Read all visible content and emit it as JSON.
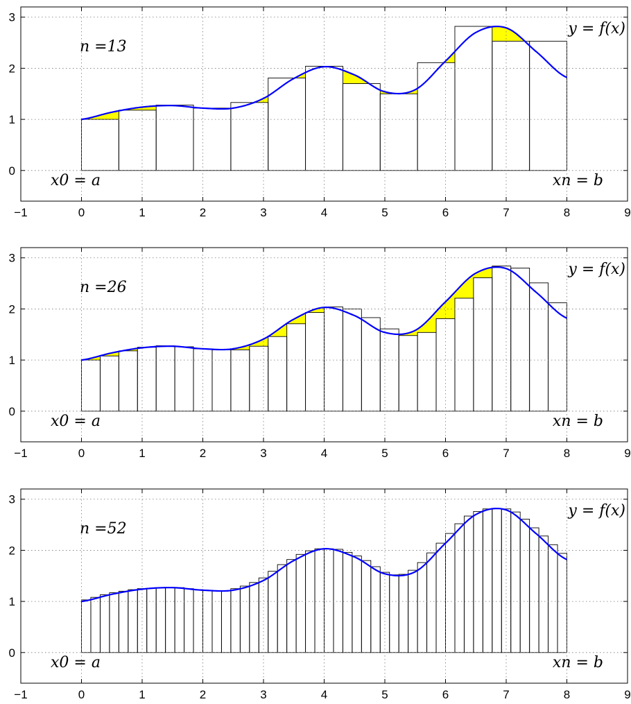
{
  "colors": {
    "curve": "#0000ff",
    "fill": "#ffff00",
    "bar_edge": "#000000"
  },
  "chart_data": [
    {
      "type": "bar",
      "n_label": "n =13",
      "n": 13,
      "curve_label": "y = f(x)",
      "left_label": "x0 = a",
      "right_label": "xn = b",
      "xlim": [
        -1,
        9
      ],
      "ylim": [
        -0.6,
        3.2
      ],
      "xticks": [
        "−1",
        "0",
        "1",
        "2",
        "3",
        "4",
        "5",
        "6",
        "7",
        "8",
        "9"
      ],
      "yticks": [
        "0",
        "1",
        "2",
        "3"
      ],
      "grid": true,
      "bar_heights": [
        1.0,
        1.18,
        1.28,
        1.22,
        1.33,
        1.81,
        2.04,
        1.7,
        1.5,
        2.11,
        2.82,
        2.53,
        2.53
      ],
      "curve": {
        "x": [
          0,
          0.5,
          1,
          1.5,
          2,
          2.5,
          3,
          3.5,
          4,
          4.5,
          5,
          5.5,
          6,
          6.5,
          7,
          7.5,
          8
        ],
        "y": [
          1.0,
          1.14,
          1.24,
          1.27,
          1.22,
          1.22,
          1.41,
          1.8,
          2.03,
          1.87,
          1.54,
          1.58,
          2.14,
          2.7,
          2.79,
          2.32,
          1.82
        ]
      }
    },
    {
      "type": "bar",
      "n_label": "n =26",
      "n": 26,
      "curve_label": "y = f(x)",
      "left_label": "x0 = a",
      "right_label": "xn = b",
      "xlim": [
        -1,
        9
      ],
      "ylim": [
        -0.6,
        3.2
      ],
      "xticks": [
        "−1",
        "0",
        "1",
        "2",
        "3",
        "4",
        "5",
        "6",
        "7",
        "8",
        "9"
      ],
      "yticks": [
        "0",
        "1",
        "2",
        "3"
      ],
      "grid": true,
      "bar_heights": [
        1.0,
        1.08,
        1.18,
        1.25,
        1.28,
        1.26,
        1.22,
        1.2,
        1.2,
        1.27,
        1.46,
        1.71,
        1.93,
        2.04,
        2.0,
        1.83,
        1.61,
        1.48,
        1.54,
        1.81,
        2.21,
        2.61,
        2.84,
        2.8,
        2.51,
        2.12
      ],
      "curve": {
        "x": [
          0,
          0.5,
          1,
          1.5,
          2,
          2.5,
          3,
          3.5,
          4,
          4.5,
          5,
          5.5,
          6,
          6.5,
          7,
          7.5,
          8
        ],
        "y": [
          1.0,
          1.14,
          1.24,
          1.27,
          1.22,
          1.22,
          1.41,
          1.8,
          2.03,
          1.87,
          1.54,
          1.58,
          2.14,
          2.7,
          2.79,
          2.32,
          1.82
        ]
      }
    },
    {
      "type": "bar",
      "n_label": "n =52",
      "n": 52,
      "curve_label": "y = f(x)",
      "left_label": "x0 = a",
      "right_label": "xn = b",
      "xlim": [
        -1,
        9
      ],
      "ylim": [
        -0.6,
        3.2
      ],
      "xticks": [
        "−1",
        "0",
        "1",
        "2",
        "3",
        "4",
        "5",
        "6",
        "7",
        "8",
        "9"
      ],
      "yticks": [
        "0",
        "1",
        "2",
        "3"
      ],
      "grid": true,
      "bar_heights": [],
      "curve": {
        "x": [
          0,
          0.5,
          1,
          1.5,
          2,
          2.5,
          3,
          3.5,
          4,
          4.5,
          5,
          5.5,
          6,
          6.5,
          7,
          7.5,
          8
        ],
        "y": [
          1.0,
          1.14,
          1.24,
          1.27,
          1.22,
          1.22,
          1.41,
          1.8,
          2.03,
          1.87,
          1.54,
          1.58,
          2.14,
          2.7,
          2.79,
          2.32,
          1.82
        ]
      }
    }
  ]
}
